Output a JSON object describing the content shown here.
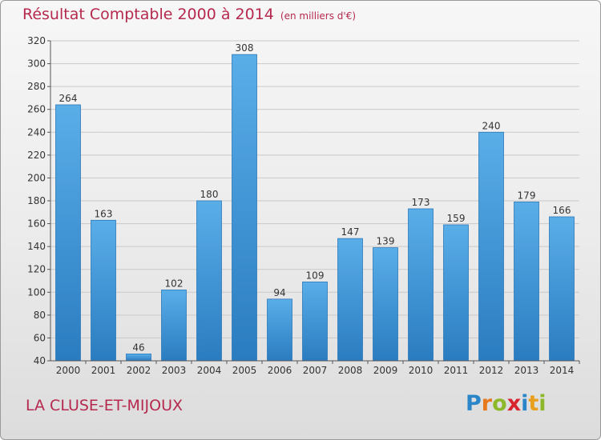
{
  "chart_data": {
    "type": "bar",
    "title": "Résultat Comptable 2000 à 2014",
    "subtitle": "(en milliers d'€)",
    "categories": [
      "2000",
      "2001",
      "2002",
      "2003",
      "2004",
      "2005",
      "2006",
      "2007",
      "2008",
      "2009",
      "2010",
      "2011",
      "2012",
      "2013",
      "2014"
    ],
    "values": [
      264,
      163,
      46,
      102,
      180,
      308,
      94,
      109,
      147,
      139,
      173,
      159,
      240,
      179,
      166
    ],
    "ylim": [
      40,
      320
    ],
    "yticks": [
      40,
      60,
      80,
      100,
      120,
      140,
      160,
      180,
      200,
      220,
      240,
      260,
      280,
      300,
      320
    ],
    "grid": true,
    "bar_color": "#3d94d8"
  },
  "footer": {
    "place_name": "LA CLUSE-ET-MIJOUX",
    "brand": {
      "letters": [
        "P",
        "r",
        "o",
        "x",
        "i",
        "t",
        "i"
      ],
      "colors": [
        "#2a86c8",
        "#e8781c",
        "#8cb82a",
        "#d8242f",
        "#2a86c8",
        "#e8a01c",
        "#8cb82a"
      ]
    }
  }
}
